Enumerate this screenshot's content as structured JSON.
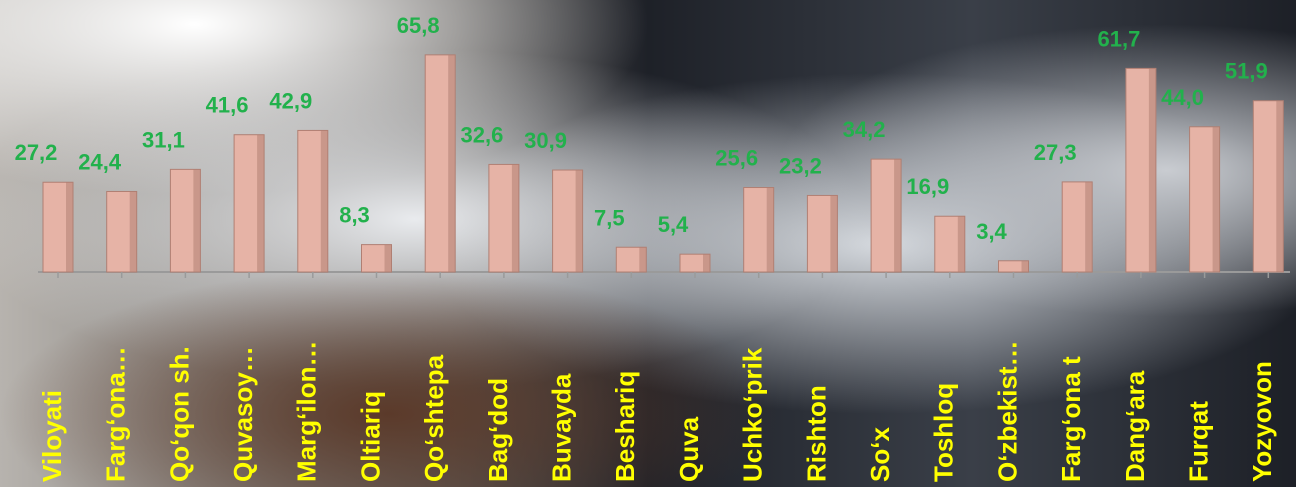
{
  "chart_data": {
    "type": "bar",
    "categories": [
      "Viloyati",
      "Farg‘ona…",
      "Qo‘qon sh.",
      "Quvasoy…",
      "Marg‘ilon…",
      "Oltiariq",
      "Qo‘shtepa",
      "Bag‘dod",
      "Buvayda",
      "Beshariq",
      "Quva",
      "Uchko‘prik",
      "Rishton",
      "So‘x",
      "Toshloq",
      "O‘zbekist…",
      "Farg‘ona t",
      "Dang‘ara",
      "Furqat",
      "Yozyovon"
    ],
    "value_labels": [
      "27,2",
      "24,4",
      "31,1",
      "41,6",
      "42,9",
      "8,3",
      "65,8",
      "32,6",
      "30,9",
      "7,5",
      "5,4",
      "25,6",
      "23,2",
      "34,2",
      "16,9",
      "3,4",
      "27,3",
      "61,7",
      "44,0",
      "51,9"
    ],
    "values": [
      27.2,
      24.4,
      31.1,
      41.6,
      42.9,
      8.3,
      65.8,
      32.6,
      30.9,
      7.5,
      5.4,
      25.6,
      23.2,
      34.2,
      16.9,
      3.4,
      27.3,
      61.7,
      44.0,
      51.9
    ],
    "title": "",
    "xlabel": "",
    "ylabel": "",
    "ylim": [
      0,
      70
    ],
    "grid": false,
    "legend": "none",
    "colors": {
      "bar_fill": "#e6b3a6",
      "bar_shade": "#b07f73",
      "value_label": "#22b14c",
      "category_label": "#ffff00",
      "axis": "#9a9a9a",
      "background_dark": "#2b2e36",
      "background_light": "#eef0f2"
    }
  }
}
